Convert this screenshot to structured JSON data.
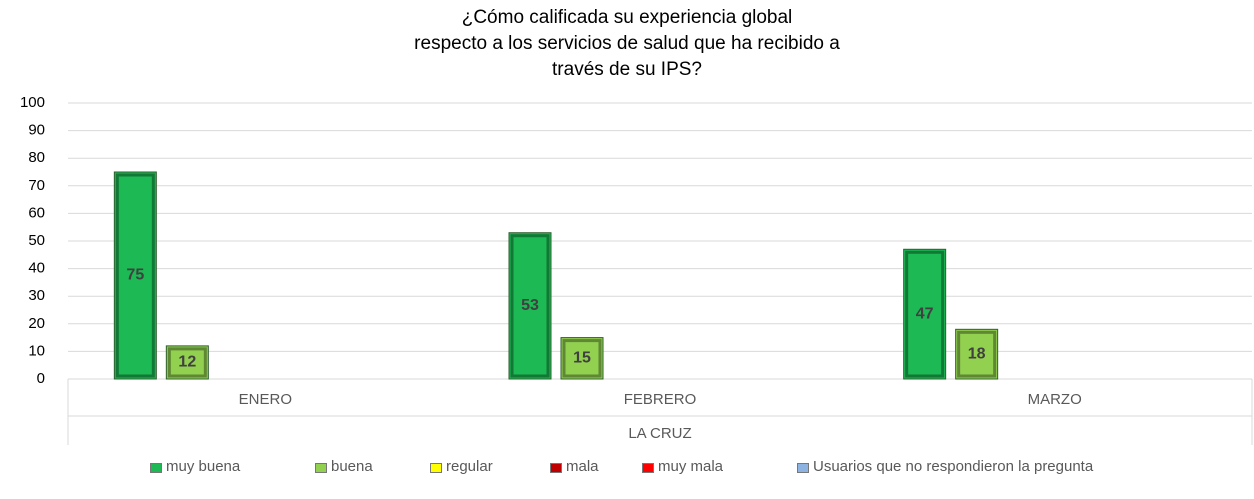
{
  "chart_data": {
    "type": "bar",
    "title": [
      "¿Cómo calificada su experiencia global",
      "respecto a los servicios de salud que ha recibido a",
      "través de su IPS?"
    ],
    "group_label": "LA CRUZ",
    "categories": [
      "ENERO",
      "FEBRERO",
      "MARZO"
    ],
    "series": [
      {
        "name": "muy buena",
        "color": "#1db954",
        "values": [
          75,
          53,
          47
        ]
      },
      {
        "name": "buena",
        "color": "#92d050",
        "values": [
          12,
          15,
          18
        ]
      },
      {
        "name": "regular",
        "color": "#ffff00",
        "values": [
          null,
          null,
          null
        ]
      },
      {
        "name": "mala",
        "color": "#c00000",
        "values": [
          null,
          null,
          null
        ]
      },
      {
        "name": "muy mala",
        "color": "#ff0000",
        "values": [
          null,
          null,
          null
        ]
      },
      {
        "name": "Usuarios que no respondieron la pregunta",
        "color": "#8db3e2",
        "values": [
          null,
          null,
          null
        ]
      }
    ],
    "ylim": [
      0,
      100
    ],
    "yticks": [
      0,
      10,
      20,
      30,
      40,
      50,
      60,
      70,
      80,
      90,
      100
    ],
    "grid": true,
    "legend": "bottom"
  }
}
